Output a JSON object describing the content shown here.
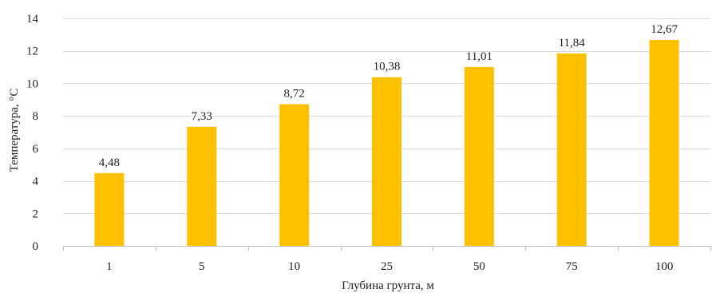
{
  "chart_data": {
    "type": "bar",
    "title": "",
    "xlabel": "Глубина грунта, м",
    "ylabel": "Температура, °С",
    "categories": [
      "1",
      "5",
      "10",
      "25",
      "50",
      "75",
      "100"
    ],
    "values": [
      4.48,
      7.33,
      8.72,
      10.38,
      11.01,
      11.84,
      12.67
    ],
    "data_labels": [
      "4,48",
      "7,33",
      "8,72",
      "10,38",
      "11,01",
      "11,84",
      "12,67"
    ],
    "ylim": [
      0,
      14
    ],
    "yticks": [
      0,
      2,
      4,
      6,
      8,
      10,
      12,
      14
    ],
    "grid": true,
    "legend": "none",
    "colors": {
      "bar": "#FFC000",
      "grid": "#D9D9D9",
      "axis": "#BFBFBF"
    }
  }
}
